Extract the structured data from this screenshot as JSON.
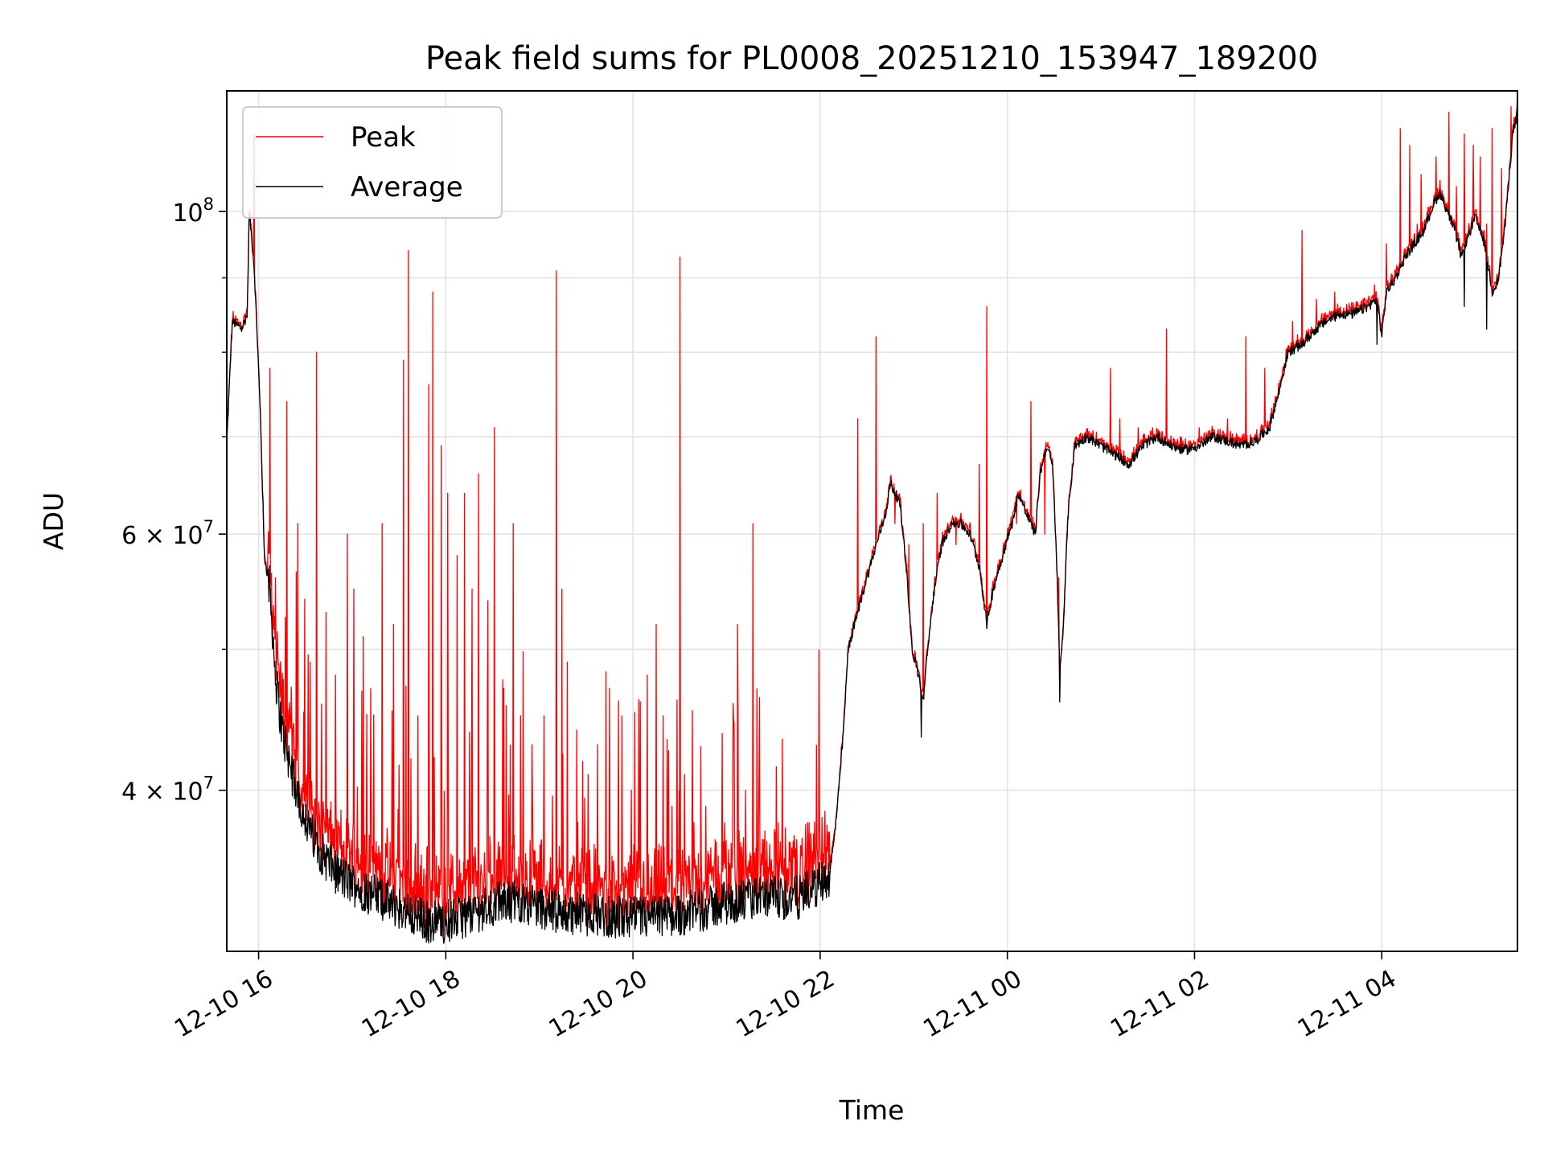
{
  "chart_data": {
    "type": "line",
    "title": "Peak field sums for PL0008_20251210_153947_189200",
    "xlabel": "Time",
    "ylabel": "ADU",
    "yscale": "log",
    "grid": true,
    "legend_placement": "top-left",
    "x_tick_labels": [
      "12-10 16",
      "12-10 18",
      "12-10 20",
      "12-10 22",
      "12-11 00",
      "12-11 02",
      "12-11 04"
    ],
    "x_ticks_hours": [
      16,
      18,
      20,
      22,
      24,
      26,
      28
    ],
    "xlim_hours": [
      15.66,
      29.45
    ],
    "y_tick_labels": [
      {
        "value": 40000000,
        "mantissa": "4",
        "exp": "7"
      },
      {
        "value": 60000000,
        "mantissa": "6",
        "exp": "7"
      },
      {
        "value": 100000000,
        "mantissa": "",
        "exp": "8"
      }
    ],
    "y_minor_ticks": [
      30000000,
      50000000,
      70000000,
      80000000,
      90000000
    ],
    "ylim": [
      31000000,
      121000000
    ],
    "series": [
      {
        "name": "Peak",
        "color": "#ff0000",
        "spikes": [
          [
            15.85,
            85000000
          ],
          [
            15.95,
            113000000
          ],
          [
            16.02,
            72000000
          ],
          [
            16.12,
            78000000
          ],
          [
            16.18,
            56000000
          ],
          [
            16.3,
            74000000
          ],
          [
            16.42,
            61000000
          ],
          [
            16.55,
            49000000
          ],
          [
            16.62,
            80000000
          ],
          [
            16.72,
            53000000
          ],
          [
            16.82,
            48000000
          ],
          [
            16.95,
            60000000
          ],
          [
            17.02,
            55000000
          ],
          [
            17.12,
            51000000
          ],
          [
            17.2,
            47000000
          ],
          [
            17.32,
            61000000
          ],
          [
            17.44,
            52000000
          ],
          [
            17.55,
            79000000
          ],
          [
            17.6,
            94000000
          ],
          [
            17.7,
            45000000
          ],
          [
            17.82,
            76000000
          ],
          [
            17.86,
            88000000
          ],
          [
            17.95,
            69000000
          ],
          [
            18.02,
            64000000
          ],
          [
            18.12,
            58000000
          ],
          [
            18.2,
            64000000
          ],
          [
            18.28,
            55000000
          ],
          [
            18.35,
            66000000
          ],
          [
            18.45,
            54000000
          ],
          [
            18.52,
            71000000
          ],
          [
            18.62,
            47000000
          ],
          [
            18.72,
            61000000
          ],
          [
            18.8,
            45000000
          ],
          [
            18.92,
            43000000
          ],
          [
            19.05,
            45000000
          ],
          [
            19.18,
            91000000
          ],
          [
            19.24,
            55000000
          ],
          [
            19.3,
            49000000
          ],
          [
            19.4,
            44000000
          ],
          [
            19.52,
            41000000
          ],
          [
            19.62,
            43000000
          ],
          [
            19.75,
            47000000
          ],
          [
            19.88,
            45000000
          ],
          [
            19.98,
            40000000
          ],
          [
            20.08,
            46000000
          ],
          [
            20.15,
            48000000
          ],
          [
            20.25,
            52000000
          ],
          [
            20.32,
            45000000
          ],
          [
            20.42,
            39000000
          ],
          [
            20.5,
            93000000
          ],
          [
            20.55,
            41000000
          ],
          [
            20.65,
            38000000
          ],
          [
            20.78,
            39000000
          ],
          [
            20.88,
            37000000
          ],
          [
            20.98,
            38000000
          ],
          [
            21.12,
            52000000
          ],
          [
            21.2,
            40000000
          ],
          [
            21.28,
            61000000
          ],
          [
            21.4,
            37000000
          ],
          [
            21.55,
            38000000
          ],
          [
            21.75,
            37000000
          ],
          [
            21.88,
            38000000
          ],
          [
            22.4,
            72000000
          ],
          [
            22.6,
            82000000
          ],
          [
            22.8,
            61000000
          ],
          [
            22.95,
            59000000
          ],
          [
            23.1,
            61000000
          ],
          [
            23.25,
            64000000
          ],
          [
            23.45,
            59000000
          ],
          [
            23.7,
            67000000
          ],
          [
            23.78,
            86000000
          ],
          [
            23.95,
            58000000
          ],
          [
            24.1,
            61000000
          ],
          [
            24.25,
            74000000
          ],
          [
            24.4,
            60000000
          ],
          [
            24.55,
            56000000
          ],
          [
            25.1,
            78000000
          ],
          [
            25.2,
            72000000
          ],
          [
            25.4,
            71000000
          ],
          [
            25.55,
            71000000
          ],
          [
            25.7,
            83000000
          ],
          [
            25.85,
            70000000
          ],
          [
            26.05,
            71000000
          ],
          [
            26.35,
            72000000
          ],
          [
            26.55,
            82000000
          ],
          [
            26.75,
            78000000
          ],
          [
            27.05,
            84000000
          ],
          [
            27.15,
            97000000
          ],
          [
            27.3,
            87000000
          ],
          [
            27.5,
            88000000
          ],
          [
            27.6,
            85000000
          ],
          [
            27.8,
            87000000
          ],
          [
            27.92,
            89000000
          ],
          [
            28.05,
            95000000
          ],
          [
            28.15,
            91000000
          ],
          [
            28.2,
            114000000
          ],
          [
            28.3,
            111000000
          ],
          [
            28.38,
            98000000
          ],
          [
            28.42,
            106000000
          ],
          [
            28.58,
            109000000
          ],
          [
            28.62,
            105000000
          ],
          [
            28.72,
            117000000
          ],
          [
            28.8,
            104000000
          ],
          [
            28.88,
            113000000
          ],
          [
            28.98,
            111000000
          ],
          [
            29.05,
            109000000
          ],
          [
            29.12,
            98000000
          ],
          [
            29.18,
            114000000
          ],
          [
            29.28,
            107000000
          ],
          [
            29.38,
            118000000
          ],
          [
            29.45,
            121000000
          ]
        ]
      },
      {
        "name": "Average",
        "color": "#000000",
        "baseline": [
          [
            15.66,
            69000000
          ],
          [
            15.72,
            84000000
          ],
          [
            15.82,
            83000000
          ],
          [
            15.88,
            85000000
          ],
          [
            15.9,
            100000000
          ],
          [
            15.95,
            92000000
          ],
          [
            16.02,
            72000000
          ],
          [
            16.06,
            58000000
          ],
          [
            16.12,
            55000000
          ],
          [
            16.18,
            48000000
          ],
          [
            16.25,
            44000000
          ],
          [
            16.4,
            40000000
          ],
          [
            16.55,
            37500000
          ],
          [
            16.7,
            36000000
          ],
          [
            16.85,
            35000000
          ],
          [
            17.0,
            34500000
          ],
          [
            17.2,
            34000000
          ],
          [
            17.4,
            33500000
          ],
          [
            17.6,
            33000000
          ],
          [
            17.8,
            32500000
          ],
          [
            18.0,
            32500000
          ],
          [
            18.2,
            32800000
          ],
          [
            18.4,
            33200000
          ],
          [
            18.6,
            33500000
          ],
          [
            18.8,
            33600000
          ],
          [
            19.0,
            33300000
          ],
          [
            19.2,
            33000000
          ],
          [
            19.4,
            32900000
          ],
          [
            19.6,
            32900000
          ],
          [
            19.8,
            32700000
          ],
          [
            20.0,
            32700000
          ],
          [
            20.2,
            32700000
          ],
          [
            20.4,
            32800000
          ],
          [
            20.6,
            33000000
          ],
          [
            20.8,
            33200000
          ],
          [
            21.0,
            33500000
          ],
          [
            21.2,
            33600000
          ],
          [
            21.4,
            33800000
          ],
          [
            21.6,
            33700000
          ],
          [
            21.8,
            33800000
          ],
          [
            22.0,
            34500000
          ],
          [
            22.1,
            35000000
          ],
          [
            22.15,
            37000000
          ],
          [
            22.2,
            40000000
          ],
          [
            22.25,
            44000000
          ],
          [
            22.3,
            50000000
          ],
          [
            22.4,
            53000000
          ],
          [
            22.5,
            56000000
          ],
          [
            22.6,
            59000000
          ],
          [
            22.7,
            62000000
          ],
          [
            22.75,
            65000000
          ],
          [
            22.85,
            63000000
          ],
          [
            22.92,
            57000000
          ],
          [
            22.98,
            50000000
          ],
          [
            23.05,
            48000000
          ],
          [
            23.1,
            46000000
          ],
          [
            23.15,
            50000000
          ],
          [
            23.22,
            55000000
          ],
          [
            23.3,
            59000000
          ],
          [
            23.4,
            61000000
          ],
          [
            23.5,
            61000000
          ],
          [
            23.6,
            60000000
          ],
          [
            23.7,
            57000000
          ],
          [
            23.78,
            52000000
          ],
          [
            23.85,
            55000000
          ],
          [
            23.95,
            58000000
          ],
          [
            24.05,
            61000000
          ],
          [
            24.12,
            64000000
          ],
          [
            24.2,
            62000000
          ],
          [
            24.3,
            60000000
          ],
          [
            24.35,
            66000000
          ],
          [
            24.42,
            69000000
          ],
          [
            24.48,
            67000000
          ],
          [
            24.52,
            59000000
          ],
          [
            24.56,
            48000000
          ],
          [
            24.6,
            52000000
          ],
          [
            24.65,
            62000000
          ],
          [
            24.72,
            69000000
          ],
          [
            24.85,
            70000000
          ],
          [
            25.0,
            69000000
          ],
          [
            25.15,
            68000000
          ],
          [
            25.3,
            67000000
          ],
          [
            25.45,
            69000000
          ],
          [
            25.6,
            70000000
          ],
          [
            25.75,
            69000000
          ],
          [
            25.9,
            68500000
          ],
          [
            26.05,
            69000000
          ],
          [
            26.2,
            70000000
          ],
          [
            26.35,
            69500000
          ],
          [
            26.5,
            69000000
          ],
          [
            26.65,
            69500000
          ],
          [
            26.8,
            71000000
          ],
          [
            26.9,
            75000000
          ],
          [
            27.0,
            80000000
          ],
          [
            27.15,
            81000000
          ],
          [
            27.3,
            83000000
          ],
          [
            27.4,
            84000000
          ],
          [
            27.55,
            85000000
          ],
          [
            27.7,
            85000000
          ],
          [
            27.85,
            86000000
          ],
          [
            27.95,
            87000000
          ],
          [
            28.0,
            82000000
          ],
          [
            28.05,
            88000000
          ],
          [
            28.15,
            90000000
          ],
          [
            28.25,
            93000000
          ],
          [
            28.35,
            95000000
          ],
          [
            28.45,
            97000000
          ],
          [
            28.55,
            101000000
          ],
          [
            28.62,
            103000000
          ],
          [
            28.7,
            100000000
          ],
          [
            28.78,
            97000000
          ],
          [
            28.85,
            93000000
          ],
          [
            28.92,
            96000000
          ],
          [
            29.0,
            99000000
          ],
          [
            29.1,
            95000000
          ],
          [
            29.18,
            88000000
          ],
          [
            29.25,
            90000000
          ],
          [
            29.32,
            98000000
          ],
          [
            29.4,
            113000000
          ],
          [
            29.45,
            117000000
          ]
        ],
        "dips": [
          [
            23.08,
            43500000
          ],
          [
            24.56,
            46000000
          ],
          [
            27.95,
            81000000
          ],
          [
            28.88,
            86000000
          ],
          [
            29.12,
            83000000
          ]
        ]
      }
    ]
  }
}
